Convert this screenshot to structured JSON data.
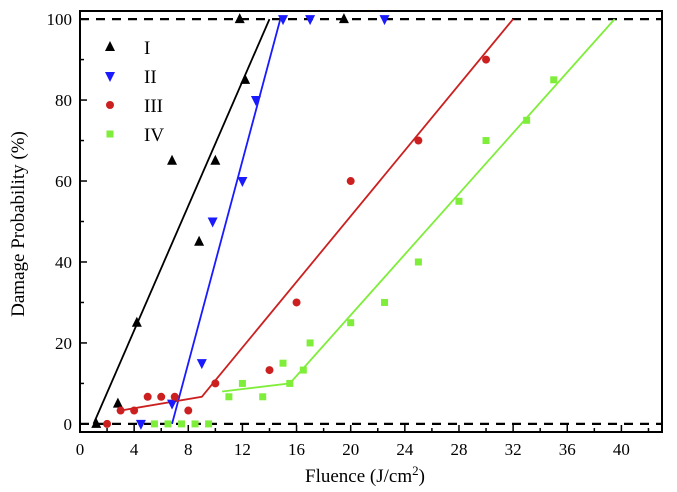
{
  "chart_data": {
    "type": "scatter",
    "title": "",
    "xlabel": "Fluence (J/cm",
    "xlabel_sup": "2",
    "xlabel_end": ")",
    "ylabel": "Damage Probability (%)",
    "xlim": [
      0,
      43
    ],
    "ylim": [
      -2,
      102
    ],
    "xticks": [
      0,
      4,
      8,
      12,
      16,
      20,
      24,
      28,
      32,
      36,
      40
    ],
    "yticks": [
      0,
      20,
      40,
      60,
      80,
      100
    ],
    "reference_lines": [
      0,
      100
    ],
    "legend_position": "top-left",
    "series": [
      {
        "name": "I",
        "color": "#000000",
        "marker": "triangle-up",
        "points": [
          [
            1.2,
            0
          ],
          [
            2.8,
            5
          ],
          [
            4.2,
            25
          ],
          [
            6.8,
            65
          ],
          [
            8.8,
            45
          ],
          [
            10,
            65
          ],
          [
            11.8,
            100
          ],
          [
            12.2,
            85
          ],
          [
            19.5,
            100
          ]
        ],
        "fit": [
          [
            1.0,
            0
          ],
          [
            14.0,
            100
          ]
        ]
      },
      {
        "name": "II",
        "color": "#1a1aff",
        "marker": "triangle-down",
        "points": [
          [
            4.5,
            0
          ],
          [
            6.8,
            5
          ],
          [
            9,
            15
          ],
          [
            9.8,
            50
          ],
          [
            12,
            60
          ],
          [
            13,
            80
          ],
          [
            15,
            100
          ],
          [
            17,
            100
          ],
          [
            22.5,
            100
          ]
        ],
        "fit": [
          [
            6.8,
            0
          ],
          [
            14.8,
            100
          ]
        ]
      },
      {
        "name": "III",
        "color": "#cc2020",
        "marker": "circle",
        "points": [
          [
            2,
            0
          ],
          [
            3,
            3.3
          ],
          [
            4,
            3.3
          ],
          [
            5,
            6.7
          ],
          [
            6,
            6.7
          ],
          [
            7,
            6.7
          ],
          [
            8,
            3.3
          ],
          [
            10,
            10
          ],
          [
            14,
            13.3
          ],
          [
            16,
            30
          ],
          [
            20,
            60
          ],
          [
            25,
            70
          ],
          [
            30,
            90
          ]
        ],
        "fit": [
          [
            3.0,
            3.3
          ],
          [
            9.0,
            6.7
          ],
          [
            32.0,
            100
          ]
        ]
      },
      {
        "name": "IV",
        "color": "#7fee3a",
        "marker": "square",
        "points": [
          [
            5.5,
            0
          ],
          [
            6.5,
            0
          ],
          [
            7.5,
            0
          ],
          [
            8.5,
            0
          ],
          [
            9.5,
            0
          ],
          [
            11,
            6.7
          ],
          [
            12,
            10
          ],
          [
            13.5,
            6.7
          ],
          [
            15,
            15
          ],
          [
            15.5,
            10
          ],
          [
            16.5,
            13.3
          ],
          [
            17,
            20
          ],
          [
            20,
            25
          ],
          [
            22.5,
            30
          ],
          [
            25,
            40
          ],
          [
            28,
            55
          ],
          [
            30,
            70
          ],
          [
            33,
            75
          ],
          [
            35,
            85
          ]
        ],
        "fit": [
          [
            10.5,
            8
          ],
          [
            15.5,
            10
          ],
          [
            39.5,
            100
          ]
        ]
      }
    ]
  }
}
